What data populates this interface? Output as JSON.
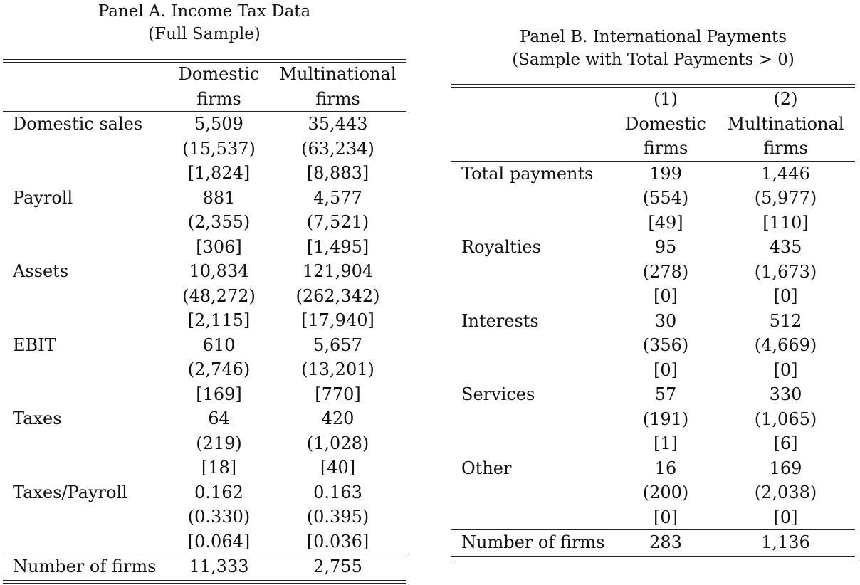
{
  "panel_a": {
    "title_line1": "Panel A. Income Tax Data",
    "title_line2": "(Full Sample)",
    "header": {
      "col1_line1": "Domestic",
      "col1_line2": "firms",
      "col2_line1": "Multinational",
      "col2_line2": "firms"
    },
    "rows": [
      {
        "label": "Domestic sales",
        "mean": [
          "5,509",
          "35,443"
        ],
        "sd": [
          "(15,537)",
          "(63,234)"
        ],
        "median": [
          "[1,824]",
          "[8,883]"
        ]
      },
      {
        "label": "Payroll",
        "mean": [
          "881",
          "4,577"
        ],
        "sd": [
          "(2,355)",
          "(7,521)"
        ],
        "median": [
          "[306]",
          "[1,495]"
        ]
      },
      {
        "label": "Assets",
        "mean": [
          "10,834",
          "121,904"
        ],
        "sd": [
          "(48,272)",
          "(262,342)"
        ],
        "median": [
          "[2,115]",
          "[17,940]"
        ]
      },
      {
        "label": "EBIT",
        "mean": [
          "610",
          "5,657"
        ],
        "sd": [
          "(2,746)",
          "(13,201)"
        ],
        "median": [
          "[169]",
          "[770]"
        ]
      },
      {
        "label": "Taxes",
        "mean": [
          "64",
          "420"
        ],
        "sd": [
          "(219)",
          "(1,028)"
        ],
        "median": [
          "[18]",
          "[40]"
        ]
      },
      {
        "label": "Taxes/Payroll",
        "mean": [
          "0.162",
          "0.163"
        ],
        "sd": [
          "(0.330)",
          "(0.395)"
        ],
        "median": [
          "[0.064]",
          "[0.036]"
        ]
      }
    ],
    "footer": {
      "label": "Number of firms",
      "values": [
        "11,333",
        "2,755"
      ]
    }
  },
  "panel_b": {
    "title_line1": "Panel B. International Payments",
    "title_line2": "(Sample with Total Payments > 0)",
    "header": {
      "col1_num": "(1)",
      "col1_line1": "Domestic",
      "col1_line2": "firms",
      "col2_num": "(2)",
      "col2_line1": "Multinational",
      "col2_line2": "firms"
    },
    "rows": [
      {
        "label": "Total payments",
        "mean": [
          "199",
          "1,446"
        ],
        "sd": [
          "(554)",
          "(5,977)"
        ],
        "median": [
          "[49]",
          "[110]"
        ]
      },
      {
        "label": "Royalties",
        "mean": [
          "95",
          "435"
        ],
        "sd": [
          "(278)",
          "(1,673)"
        ],
        "median": [
          "[0]",
          "[0]"
        ]
      },
      {
        "label": "Interests",
        "mean": [
          "30",
          "512"
        ],
        "sd": [
          "(356)",
          "(4,669)"
        ],
        "median": [
          "[0]",
          "[0]"
        ]
      },
      {
        "label": "Services",
        "mean": [
          "57",
          "330"
        ],
        "sd": [
          "(191)",
          "(1,065)"
        ],
        "median": [
          "[1]",
          "[6]"
        ]
      },
      {
        "label": "Other",
        "mean": [
          "16",
          "169"
        ],
        "sd": [
          "(200)",
          "(2,038)"
        ],
        "median": [
          "[0]",
          "[0]"
        ]
      }
    ],
    "footer": {
      "label": "Number of firms",
      "values": [
        "283",
        "1,136"
      ]
    }
  }
}
